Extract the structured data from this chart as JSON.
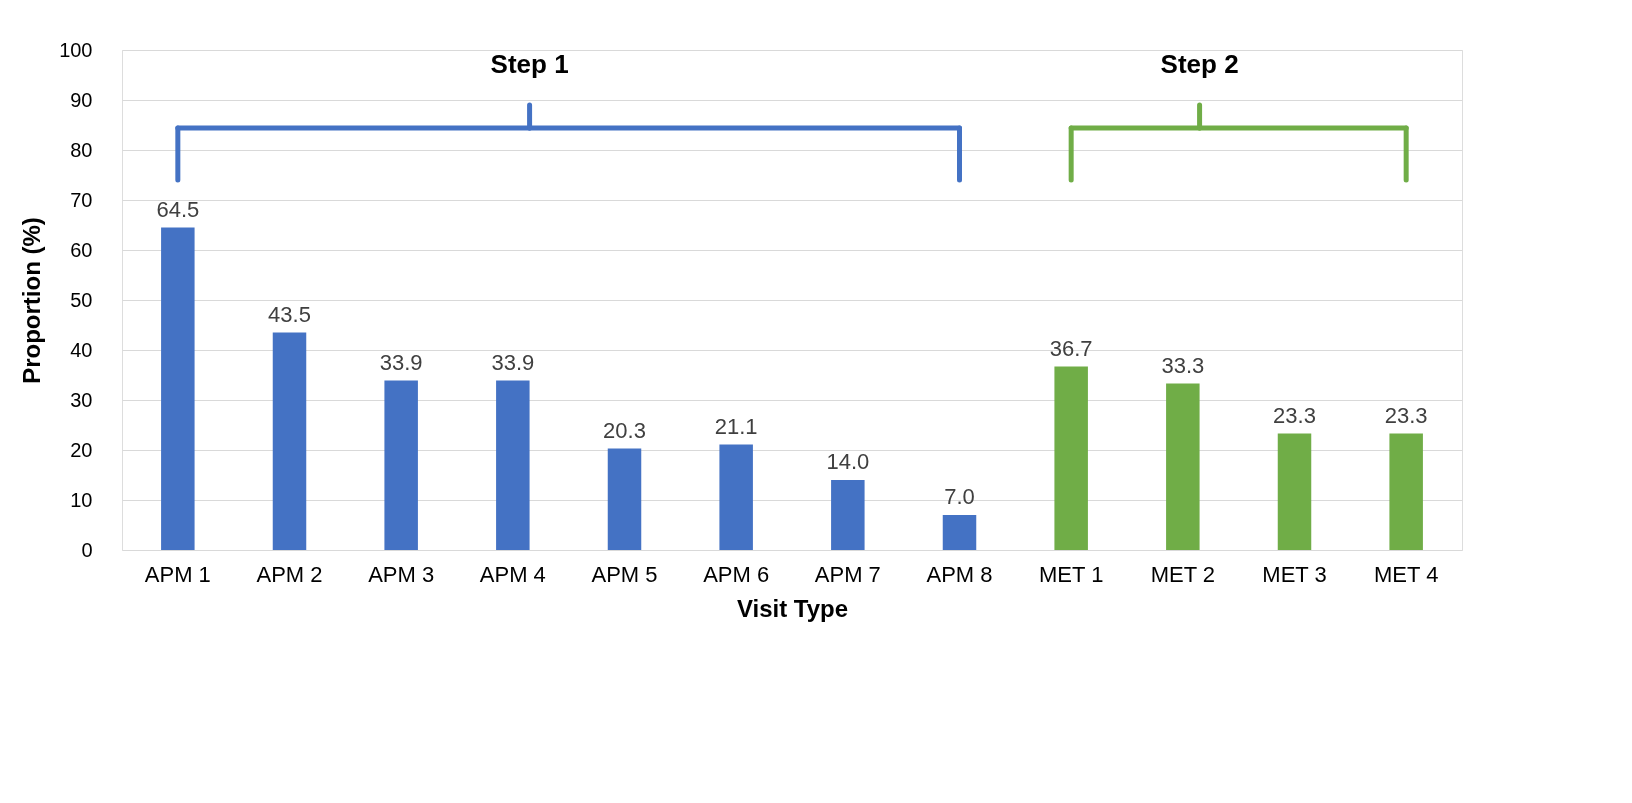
{
  "chart_data": {
    "type": "bar",
    "categories": [
      "APM 1",
      "APM 2",
      "APM 3",
      "APM 4",
      "APM 5",
      "APM 6",
      "APM 7",
      "APM 8",
      "MET 1",
      "MET 2",
      "MET 3",
      "MET 4"
    ],
    "values": [
      64.5,
      43.5,
      33.9,
      33.9,
      20.3,
      21.1,
      14.0,
      7.0,
      36.7,
      33.3,
      23.3,
      23.3
    ],
    "colors": [
      "#4472c4",
      "#4472c4",
      "#4472c4",
      "#4472c4",
      "#4472c4",
      "#4472c4",
      "#4472c4",
      "#4472c4",
      "#70ad47",
      "#70ad47",
      "#70ad47",
      "#70ad47"
    ],
    "value_labels": [
      "64.5",
      "43.5",
      "33.9",
      "33.9",
      "20.3",
      "21.1",
      "14.0",
      "7.0",
      "36.7",
      "33.3",
      "23.3",
      "23.3"
    ],
    "xlabel": "Visit Type",
    "ylabel": "Proportion (%)",
    "ylim": [
      0,
      100
    ],
    "yticks": [
      0,
      10,
      20,
      30,
      40,
      50,
      60,
      70,
      80,
      90,
      100
    ],
    "grid": "y",
    "annotations": [
      "Step 1",
      "Step 2"
    ]
  }
}
